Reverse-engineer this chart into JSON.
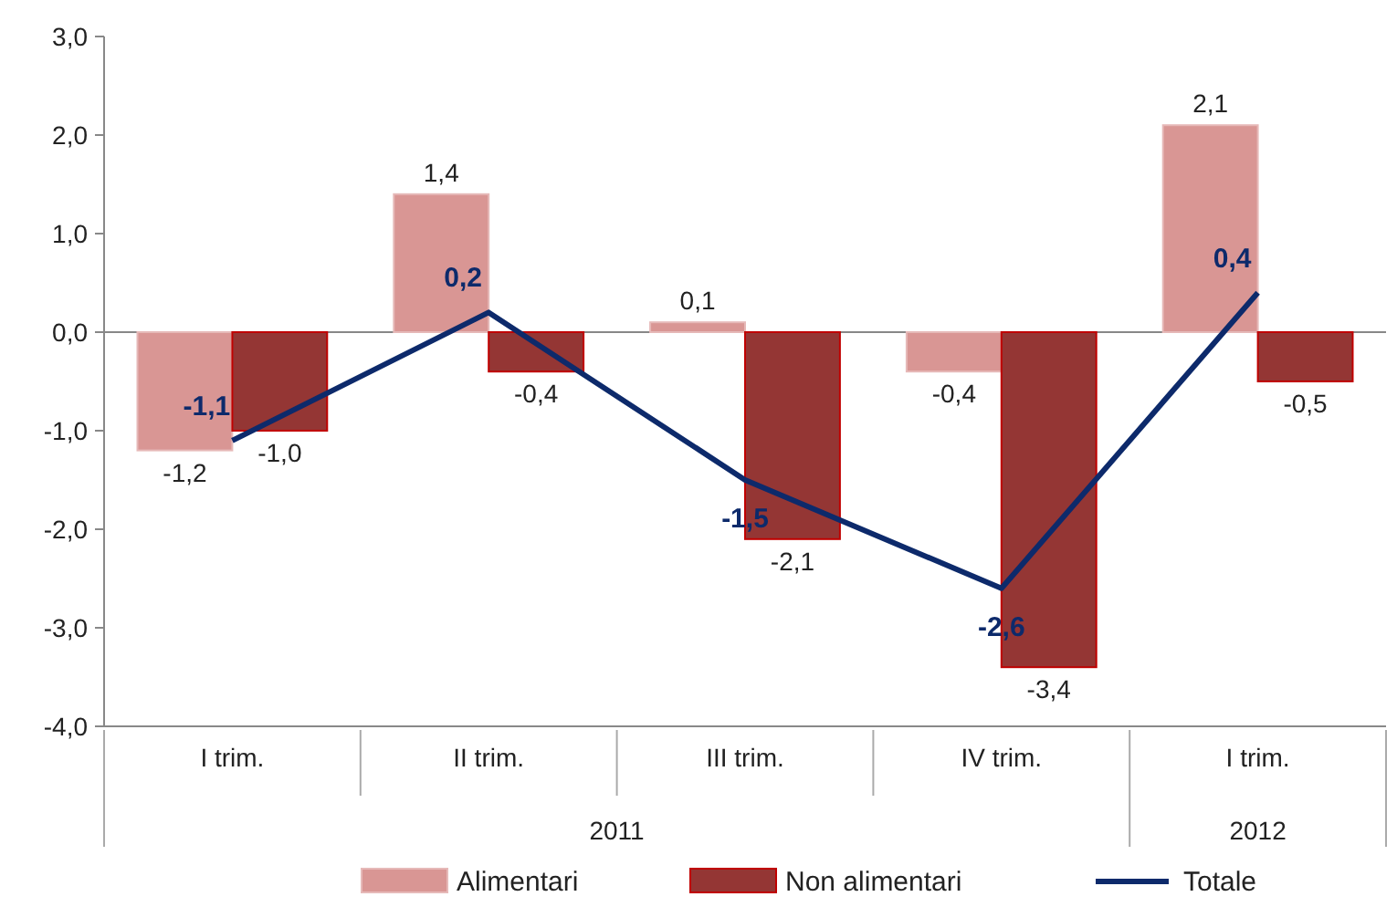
{
  "chart_data": {
    "type": "bar",
    "categories": [
      "I trim.",
      "II trim.",
      "III trim.",
      "IV trim.",
      "I trim."
    ],
    "annotations": [
      "2011",
      "2012"
    ],
    "series": [
      {
        "name": "Alimentari",
        "color": "#d99694",
        "values": [
          -1.2,
          1.4,
          0.1,
          -0.4,
          2.1
        ],
        "value_labels": [
          "-1,2",
          "1,4",
          "0,1",
          "-0,4",
          "2,1"
        ]
      },
      {
        "name": "Non alimentari",
        "color": "#943634",
        "values": [
          -1.0,
          -0.4,
          -2.1,
          -3.4,
          -0.5
        ],
        "value_labels": [
          "-1,0",
          "-0,4",
          "-2,1",
          "-3,4",
          "-0,5"
        ]
      },
      {
        "name": "Totale",
        "type": "line",
        "color": "#0d2a6b",
        "values": [
          -1.1,
          0.2,
          -1.5,
          -2.6,
          0.4
        ],
        "value_labels": [
          "-1,1",
          "0,2",
          "-1,5",
          "-2,6",
          "0,4"
        ]
      }
    ],
    "ylim": [
      -4,
      3
    ],
    "yticks": [
      {
        "value": 3,
        "label": "3,0"
      },
      {
        "value": 2,
        "label": "2,0"
      },
      {
        "value": 1,
        "label": "1,0"
      },
      {
        "value": 0,
        "label": "0,0"
      },
      {
        "value": -1,
        "label": "-1,0"
      },
      {
        "value": -2,
        "label": "-2,0"
      },
      {
        "value": -3,
        "label": "-3,0"
      },
      {
        "value": -4,
        "label": "-4,0"
      }
    ],
    "ref_lines": [
      {
        "axis": "y",
        "value": 0,
        "color": "#888888"
      }
    ],
    "legend": "bottom",
    "marker": "none",
    "line_style": "solid"
  }
}
